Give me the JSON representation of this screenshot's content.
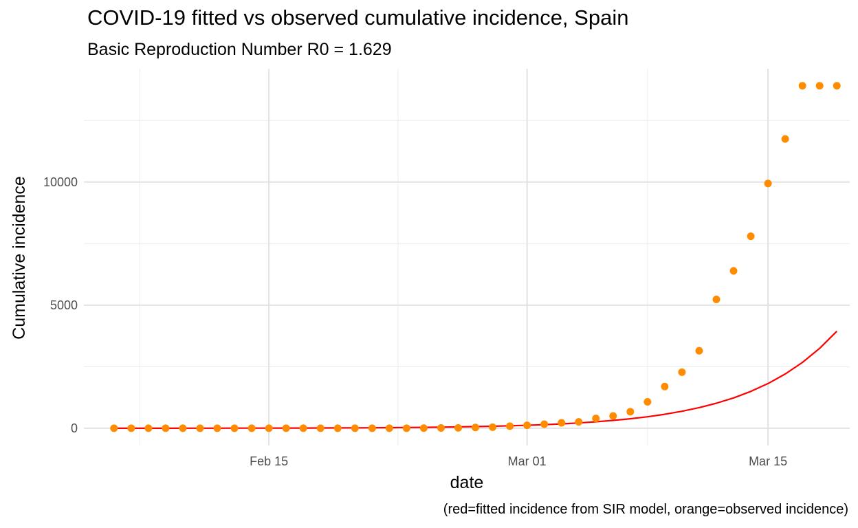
{
  "chart_data": {
    "type": "line+scatter",
    "title": "COVID-19 fitted vs observed cumulative incidence, Spain",
    "subtitle": "Basic Reproduction Number R0 = 1.629",
    "xlabel": "date",
    "ylabel": "Cumulative incidence",
    "caption": "(red=fitted incidence from SIR model, orange=observed incidence)",
    "x_start_date": "2020-02-06",
    "xlim_days": [
      -1.75,
      42.75
    ],
    "ylim": [
      -700,
      14600
    ],
    "x_ticks": [
      {
        "label": "Feb 15",
        "day": 9
      },
      {
        "label": "Mar 01",
        "day": 24
      },
      {
        "label": "Mar 15",
        "day": 38
      }
    ],
    "y_ticks": [
      {
        "label": "0",
        "value": 0
      },
      {
        "label": "5000",
        "value": 5000
      },
      {
        "label": "10000",
        "value": 10000
      }
    ],
    "y_minor": [
      2500,
      7500,
      12500
    ],
    "series": [
      {
        "name": "observed incidence",
        "color": "#FF8C00",
        "kind": "points",
        "x": [
          0,
          1,
          2,
          3,
          4,
          5,
          6,
          7,
          8,
          9,
          10,
          11,
          12,
          13,
          14,
          15,
          16,
          17,
          18,
          19,
          20,
          21,
          22,
          23,
          24,
          25,
          26,
          27,
          28,
          29,
          30,
          31,
          32,
          33,
          34,
          35,
          36,
          37,
          38,
          39,
          40,
          41,
          42
        ],
        "values": [
          1,
          1,
          1,
          2,
          2,
          2,
          2,
          2,
          2,
          2,
          2,
          2,
          2,
          2,
          2,
          2,
          2,
          2,
          6,
          13,
          15,
          32,
          45,
          84,
          120,
          165,
          222,
          259,
          400,
          500,
          673,
          1073,
          1695,
          2277,
          3146,
          5232,
          6391,
          7798,
          9942,
          11748,
          13910,
          13910,
          13910
        ]
      },
      {
        "name": "fitted incidence from SIR model",
        "color": "#FF0000",
        "kind": "line",
        "x": [
          0,
          1,
          2,
          3,
          4,
          5,
          6,
          7,
          8,
          9,
          10,
          11,
          12,
          13,
          14,
          15,
          16,
          17,
          18,
          19,
          20,
          21,
          22,
          23,
          24,
          25,
          26,
          27,
          28,
          29,
          30,
          31,
          32,
          33,
          34,
          35,
          36,
          37,
          38,
          39,
          40,
          41,
          42
        ],
        "values": [
          1,
          1,
          2,
          2,
          3,
          3,
          4,
          5,
          6,
          7,
          8,
          10,
          12,
          15,
          18,
          21,
          26,
          31,
          38,
          46,
          56,
          68,
          82,
          100,
          121,
          147,
          178,
          216,
          262,
          318,
          386,
          468,
          568,
          690,
          837,
          1016,
          1233,
          1497,
          1816,
          2204,
          2675,
          3246,
          3940
        ]
      }
    ]
  }
}
